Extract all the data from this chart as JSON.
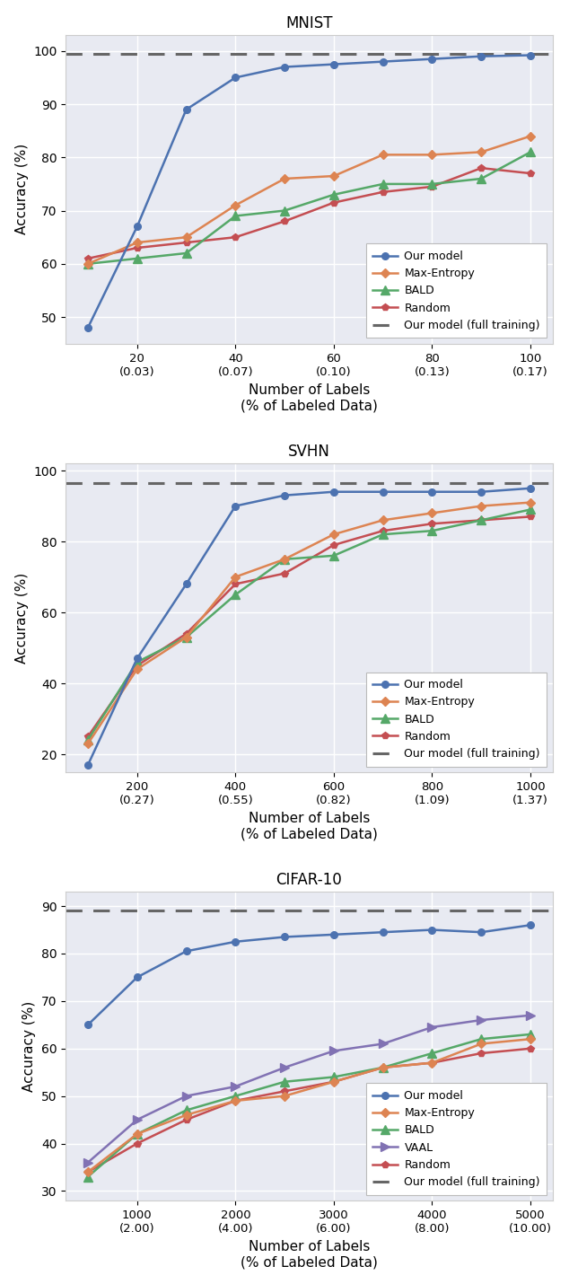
{
  "mnist": {
    "title": "MNIST",
    "x": [
      10,
      20,
      30,
      40,
      50,
      60,
      70,
      80,
      90,
      100
    ],
    "x_ticks": [
      20,
      40,
      60,
      80,
      100
    ],
    "x_tick_top": [
      "20",
      "40",
      "60",
      "80",
      "100"
    ],
    "x_tick_bot": [
      "(0.03)",
      "(0.07)",
      "(0.10)",
      "(0.13)",
      "(0.17)"
    ],
    "our_model": [
      48,
      67,
      89,
      95,
      97,
      97.5,
      98,
      98.5,
      99,
      99.2
    ],
    "max_entropy": [
      60,
      64,
      65,
      71,
      76,
      76.5,
      80.5,
      80.5,
      81,
      84
    ],
    "bald": [
      60,
      61,
      62,
      69,
      70,
      73,
      75,
      75,
      76,
      81
    ],
    "random": [
      61,
      63,
      64,
      65,
      68,
      71.5,
      73.5,
      74.5,
      78,
      77
    ],
    "full_training": 99.5,
    "ylim": [
      45,
      103
    ],
    "yticks": [
      50,
      60,
      70,
      80,
      90,
      100
    ],
    "ylabel": "Accuracy (%)",
    "xlabel": "Number of Labels\n(% of Labeled Data)"
  },
  "svhn": {
    "title": "SVHN",
    "x": [
      100,
      200,
      300,
      400,
      500,
      600,
      700,
      800,
      900,
      1000
    ],
    "x_ticks": [
      200,
      400,
      600,
      800,
      1000
    ],
    "x_tick_top": [
      "200",
      "400",
      "600",
      "800",
      "1000"
    ],
    "x_tick_bot": [
      "(0.27)",
      "(0.55)",
      "(0.82)",
      "(1.09)",
      "(1.37)"
    ],
    "our_model": [
      17,
      47,
      68,
      90,
      93,
      94,
      94,
      94,
      94,
      95
    ],
    "max_entropy": [
      23,
      44,
      53,
      70,
      75,
      82,
      86,
      88,
      90,
      91
    ],
    "bald": [
      24,
      46,
      53,
      65,
      75,
      76,
      82,
      83,
      86,
      89
    ],
    "random": [
      25,
      45,
      54,
      68,
      71,
      79,
      83,
      85,
      86,
      87
    ],
    "full_training": 96.5,
    "ylim": [
      15,
      102
    ],
    "yticks": [
      20,
      40,
      60,
      80,
      100
    ],
    "ylabel": "Accuracy (%)",
    "xlabel": "Number of Labels\n(% of Labeled Data)"
  },
  "cifar10": {
    "title": "CIFAR-10",
    "x": [
      500,
      1000,
      1500,
      2000,
      2500,
      3000,
      3500,
      4000,
      4500,
      5000
    ],
    "x_ticks": [
      1000,
      2000,
      3000,
      4000,
      5000
    ],
    "x_tick_top": [
      "1000",
      "2000",
      "3000",
      "4000",
      "5000"
    ],
    "x_tick_bot": [
      "(2.00)",
      "(4.00)",
      "(6.00)",
      "(8.00)",
      "(10.00)"
    ],
    "our_model": [
      65,
      75,
      80.5,
      82.5,
      83.5,
      84,
      84.5,
      85,
      84.5,
      86
    ],
    "max_entropy": [
      34,
      42,
      46,
      49,
      50,
      53,
      56,
      57,
      61,
      62
    ],
    "bald": [
      33,
      42,
      47,
      50,
      53,
      54,
      56,
      59,
      62,
      63
    ],
    "vaal": [
      36,
      45,
      50,
      52,
      56,
      59.5,
      61,
      64.5,
      66,
      67
    ],
    "random": [
      34,
      40,
      45,
      49,
      51,
      53,
      56,
      57,
      59,
      60
    ],
    "full_training": 89,
    "ylim": [
      28,
      93
    ],
    "yticks": [
      30,
      40,
      50,
      60,
      70,
      80,
      90
    ],
    "ylabel": "Accuracy (%)",
    "xlabel": "Number of Labels\n(% of Labeled Data)"
  },
  "colors": {
    "our_model": "#4c72b0",
    "max_entropy": "#dd8452",
    "bald": "#55a868",
    "vaal": "#8172b3",
    "random": "#c44e52",
    "full_training": "#666666"
  },
  "bg_color": "#e8eaf2"
}
